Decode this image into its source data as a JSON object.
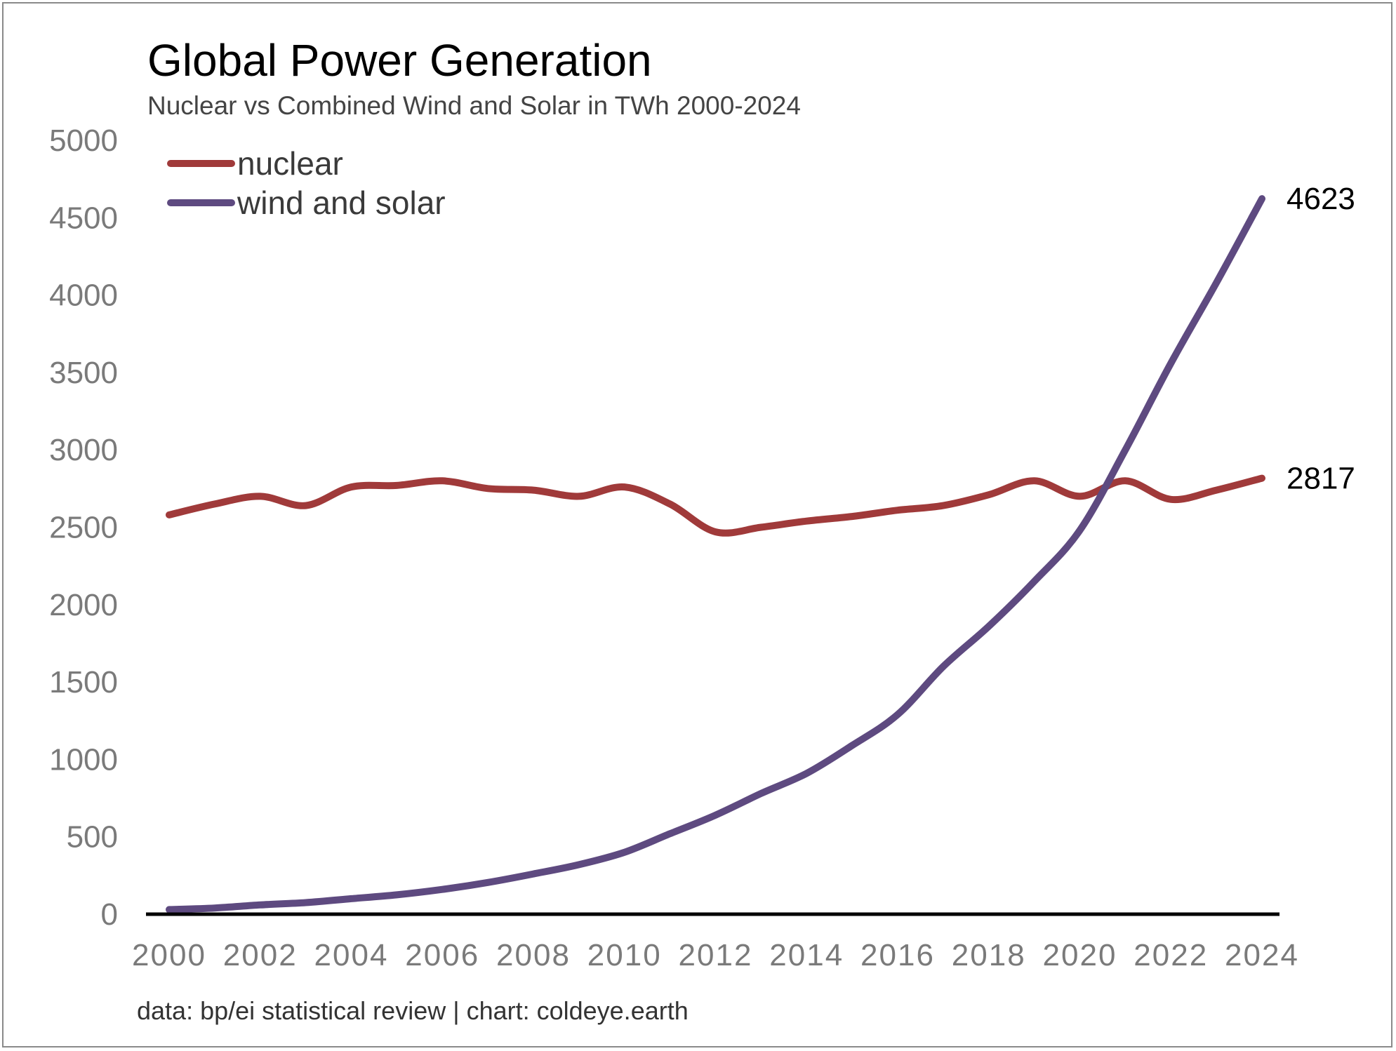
{
  "chart_data": {
    "type": "line",
    "title": "Global Power Generation",
    "subtitle": "Nuclear vs Combined Wind and Solar in TWh 2000-2024",
    "xlabel": "",
    "ylabel": "",
    "x": [
      2000,
      2001,
      2002,
      2003,
      2004,
      2005,
      2006,
      2007,
      2008,
      2009,
      2010,
      2011,
      2012,
      2013,
      2014,
      2015,
      2016,
      2017,
      2018,
      2019,
      2020,
      2021,
      2022,
      2023,
      2024
    ],
    "x_ticks": [
      "2000",
      "2002",
      "2004",
      "2006",
      "2008",
      "2010",
      "2012",
      "2014",
      "2016",
      "2018",
      "2020",
      "2022",
      "2024"
    ],
    "y_ticks": [
      "0",
      "500",
      "1000",
      "1500",
      "2000",
      "2500",
      "3000",
      "3500",
      "4000",
      "4500",
      "5000"
    ],
    "ylim": [
      0,
      5000
    ],
    "xlim": [
      2000,
      2024
    ],
    "grid": false,
    "legend_position": "top-left",
    "series": [
      {
        "name": "nuclear",
        "color": "#a03a3a",
        "values": [
          2580,
          2650,
          2700,
          2640,
          2760,
          2770,
          2800,
          2750,
          2740,
          2700,
          2760,
          2650,
          2470,
          2500,
          2540,
          2570,
          2610,
          2640,
          2710,
          2800,
          2700,
          2800,
          2680,
          2740,
          2817
        ],
        "end_label": "2817"
      },
      {
        "name": "wind and solar",
        "color": "#5e4a80",
        "values": [
          30,
          40,
          60,
          75,
          100,
          125,
          160,
          205,
          260,
          320,
          400,
          520,
          640,
          780,
          910,
          1090,
          1290,
          1600,
          1860,
          2150,
          2480,
          3000,
          3560,
          4080,
          4623
        ],
        "end_label": "4623"
      }
    ],
    "source": "data: bp/ei statistical review | chart: coldeye.earth"
  }
}
